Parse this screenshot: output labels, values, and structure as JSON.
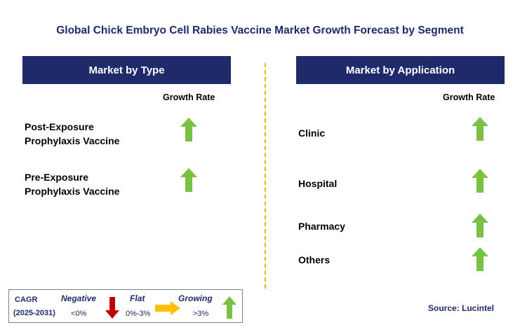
{
  "title": "Global Chick Embryo Cell Rabies Vaccine Market Growth Forecast by Segment",
  "left_panel": {
    "header": "Market by Type",
    "growth_label": "Growth Rate",
    "items": [
      {
        "line1": "Post-Exposure",
        "line2": "Prophylaxis Vaccine",
        "trend": "growing"
      },
      {
        "line1": "Pre-Exposure",
        "line2": "Prophylaxis Vaccine",
        "trend": "growing"
      }
    ]
  },
  "right_panel": {
    "header": "Market by Application",
    "growth_label": "Growth Rate",
    "items": [
      {
        "label": "Clinic",
        "trend": "growing"
      },
      {
        "label": "Hospital",
        "trend": "growing"
      },
      {
        "label": "Pharmacy",
        "trend": "growing"
      },
      {
        "label": "Others",
        "trend": "growing"
      }
    ]
  },
  "legend": {
    "cagr": "CAGR",
    "period": "(2025-2031)",
    "negative": "Negative",
    "negative_range": "<0%",
    "flat": "Flat",
    "flat_range": "0%-3%",
    "growing": "Growing",
    "growing_range": ">3%"
  },
  "source": "Source: Lucintel",
  "colors": {
    "header_bg": "#1f2a6b",
    "growing": "#7ac143",
    "negative": "#c00000",
    "flat": "#ffc000",
    "divider": "#f2b400"
  },
  "icons": {
    "growing": "up-arrow-icon",
    "negative": "down-arrow-icon",
    "flat": "right-arrow-icon"
  }
}
